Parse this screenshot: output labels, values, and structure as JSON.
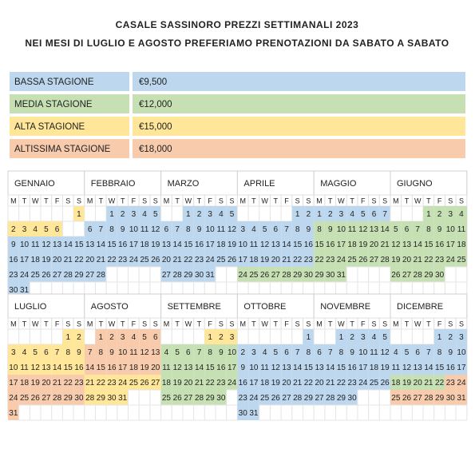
{
  "header": {
    "title": "CASALE SASSINORO PREZZI SETTIMANALI 2023",
    "subtitle": "NEI MESI DI LUGLIO E AGOSTO PREFERIAMO PRENOTAZIONI DA SABATO A SABATO"
  },
  "seasons": [
    {
      "name": "BASSA STAGIONE",
      "price": "€9,500",
      "color": "#bdd7ee"
    },
    {
      "name": "MEDIA STAGIONE",
      "price": "€12,000",
      "color": "#c6e0b4"
    },
    {
      "name": "ALTA STAGIONE",
      "price": "€15,000",
      "color": "#ffe699"
    },
    {
      "name": "ALTISSIMA STAGIONE",
      "price": "€18,000",
      "color": "#f8cbad"
    }
  ],
  "calendar": {
    "weekdays": [
      "M",
      "T",
      "W",
      "T",
      "F",
      "S",
      "S"
    ],
    "months": [
      {
        "name": "GENNAIO",
        "weeks": [
          [
            null,
            null,
            null,
            null,
            null,
            null,
            1
          ],
          [
            2,
            3,
            4,
            5,
            6,
            null,
            null
          ],
          [
            9,
            10,
            11,
            12,
            13,
            14,
            15
          ],
          [
            16,
            17,
            18,
            19,
            20,
            21,
            22
          ],
          [
            23,
            24,
            25,
            26,
            27,
            28,
            29
          ],
          [
            30,
            31,
            null,
            null,
            null,
            null,
            null
          ]
        ],
        "seasons": [
          2,
          2,
          0,
          0,
          0,
          0
        ]
      },
      {
        "name": "FEBBRAIO",
        "weeks": [
          [
            null,
            null,
            1,
            2,
            3,
            4,
            5
          ],
          [
            6,
            7,
            8,
            9,
            10,
            11,
            12
          ],
          [
            13,
            14,
            15,
            16,
            17,
            18,
            19
          ],
          [
            20,
            21,
            22,
            23,
            24,
            25,
            26
          ],
          [
            27,
            28,
            null,
            null,
            null,
            null,
            null
          ]
        ],
        "seasons": [
          0,
          0,
          0,
          0,
          0
        ]
      },
      {
        "name": "MARZO",
        "weeks": [
          [
            null,
            null,
            1,
            2,
            3,
            4,
            5
          ],
          [
            6,
            7,
            8,
            9,
            10,
            11,
            12
          ],
          [
            13,
            14,
            15,
            16,
            17,
            18,
            19
          ],
          [
            20,
            21,
            22,
            23,
            24,
            25,
            26
          ],
          [
            27,
            28,
            29,
            30,
            31,
            null,
            null
          ]
        ],
        "seasons": [
          0,
          0,
          0,
          0,
          0
        ]
      },
      {
        "name": "APRILE",
        "weeks": [
          [
            null,
            null,
            null,
            null,
            null,
            1,
            2
          ],
          [
            3,
            4,
            5,
            6,
            7,
            8,
            9
          ],
          [
            10,
            11,
            12,
            13,
            14,
            15,
            16
          ],
          [
            17,
            18,
            19,
            20,
            21,
            22,
            23
          ],
          [
            24,
            25,
            26,
            27,
            28,
            29,
            30
          ]
        ],
        "seasons": [
          0,
          0,
          0,
          0,
          1
        ]
      },
      {
        "name": "MAGGIO",
        "weeks": [
          [
            1,
            2,
            3,
            4,
            5,
            6,
            7
          ],
          [
            8,
            9,
            10,
            11,
            12,
            13,
            14
          ],
          [
            15,
            16,
            17,
            18,
            19,
            20,
            21
          ],
          [
            22,
            23,
            24,
            25,
            26,
            27,
            28
          ],
          [
            29,
            30,
            31,
            null,
            null,
            null,
            null
          ]
        ],
        "seasons": [
          0,
          1,
          1,
          1,
          1
        ]
      },
      {
        "name": "GIUGNO",
        "weeks": [
          [
            null,
            null,
            null,
            1,
            2,
            3,
            4
          ],
          [
            5,
            6,
            7,
            8,
            9,
            10,
            11
          ],
          [
            12,
            13,
            14,
            15,
            16,
            17,
            18
          ],
          [
            19,
            20,
            21,
            22,
            23,
            24,
            25
          ],
          [
            26,
            27,
            28,
            29,
            30,
            null,
            null
          ]
        ],
        "seasons": [
          1,
          1,
          1,
          1,
          1
        ]
      },
      {
        "name": "LUGLIO",
        "weeks": [
          [
            null,
            null,
            null,
            null,
            null,
            1,
            2
          ],
          [
            3,
            4,
            5,
            6,
            7,
            8,
            9
          ],
          [
            10,
            11,
            12,
            13,
            14,
            15,
            16
          ],
          [
            17,
            18,
            19,
            20,
            21,
            22,
            23
          ],
          [
            24,
            25,
            26,
            27,
            28,
            29,
            30
          ],
          [
            31,
            null,
            null,
            null,
            null,
            null,
            null
          ]
        ],
        "seasons": [
          2,
          2,
          2,
          3,
          3,
          3
        ]
      },
      {
        "name": "AGOSTO",
        "weeks": [
          [
            null,
            1,
            2,
            3,
            4,
            5,
            6
          ],
          [
            7,
            8,
            9,
            10,
            11,
            12,
            13
          ],
          [
            14,
            15,
            16,
            17,
            18,
            19,
            20
          ],
          [
            21,
            22,
            23,
            24,
            25,
            26,
            27
          ],
          [
            28,
            29,
            30,
            31,
            null,
            null,
            null
          ]
        ],
        "seasons": [
          3,
          3,
          3,
          2,
          2
        ]
      },
      {
        "name": "SETTEMBRE",
        "weeks": [
          [
            null,
            null,
            null,
            null,
            1,
            2,
            3
          ],
          [
            4,
            5,
            6,
            7,
            8,
            9,
            10
          ],
          [
            11,
            12,
            13,
            14,
            15,
            16,
            17
          ],
          [
            18,
            19,
            20,
            21,
            22,
            23,
            24
          ],
          [
            25,
            26,
            27,
            28,
            29,
            30,
            null
          ]
        ],
        "seasons": [
          2,
          1,
          1,
          1,
          1
        ]
      },
      {
        "name": "OTTOBRE",
        "weeks": [
          [
            null,
            null,
            null,
            null,
            null,
            null,
            1
          ],
          [
            2,
            3,
            4,
            5,
            6,
            7,
            8
          ],
          [
            9,
            10,
            11,
            12,
            13,
            14,
            15
          ],
          [
            16,
            17,
            18,
            19,
            20,
            21,
            22
          ],
          [
            23,
            24,
            25,
            26,
            27,
            28,
            29
          ],
          [
            30,
            31,
            null,
            null,
            null,
            null,
            null
          ]
        ],
        "seasons": [
          0,
          0,
          0,
          0,
          0,
          0
        ]
      },
      {
        "name": "NOVEMBRE",
        "weeks": [
          [
            null,
            null,
            1,
            2,
            3,
            4,
            5
          ],
          [
            6,
            7,
            8,
            9,
            10,
            11,
            12
          ],
          [
            13,
            14,
            15,
            16,
            17,
            18,
            19
          ],
          [
            20,
            21,
            22,
            23,
            24,
            25,
            26
          ],
          [
            27,
            28,
            29,
            30,
            null,
            null,
            null
          ]
        ],
        "seasons": [
          0,
          0,
          0,
          0,
          0
        ]
      },
      {
        "name": "DICEMBRE",
        "weeks": [
          [
            null,
            null,
            null,
            null,
            1,
            2,
            3
          ],
          [
            4,
            5,
            6,
            7,
            8,
            9,
            10
          ],
          [
            11,
            12,
            13,
            14,
            15,
            16,
            17
          ],
          [
            18,
            19,
            20,
            21,
            22,
            23,
            24
          ],
          [
            25,
            26,
            27,
            28,
            29,
            30,
            31
          ]
        ],
        "seasons": [
          0,
          0,
          0,
          [
            1,
            1,
            1,
            1,
            1,
            3,
            3
          ],
          3
        ]
      }
    ]
  }
}
